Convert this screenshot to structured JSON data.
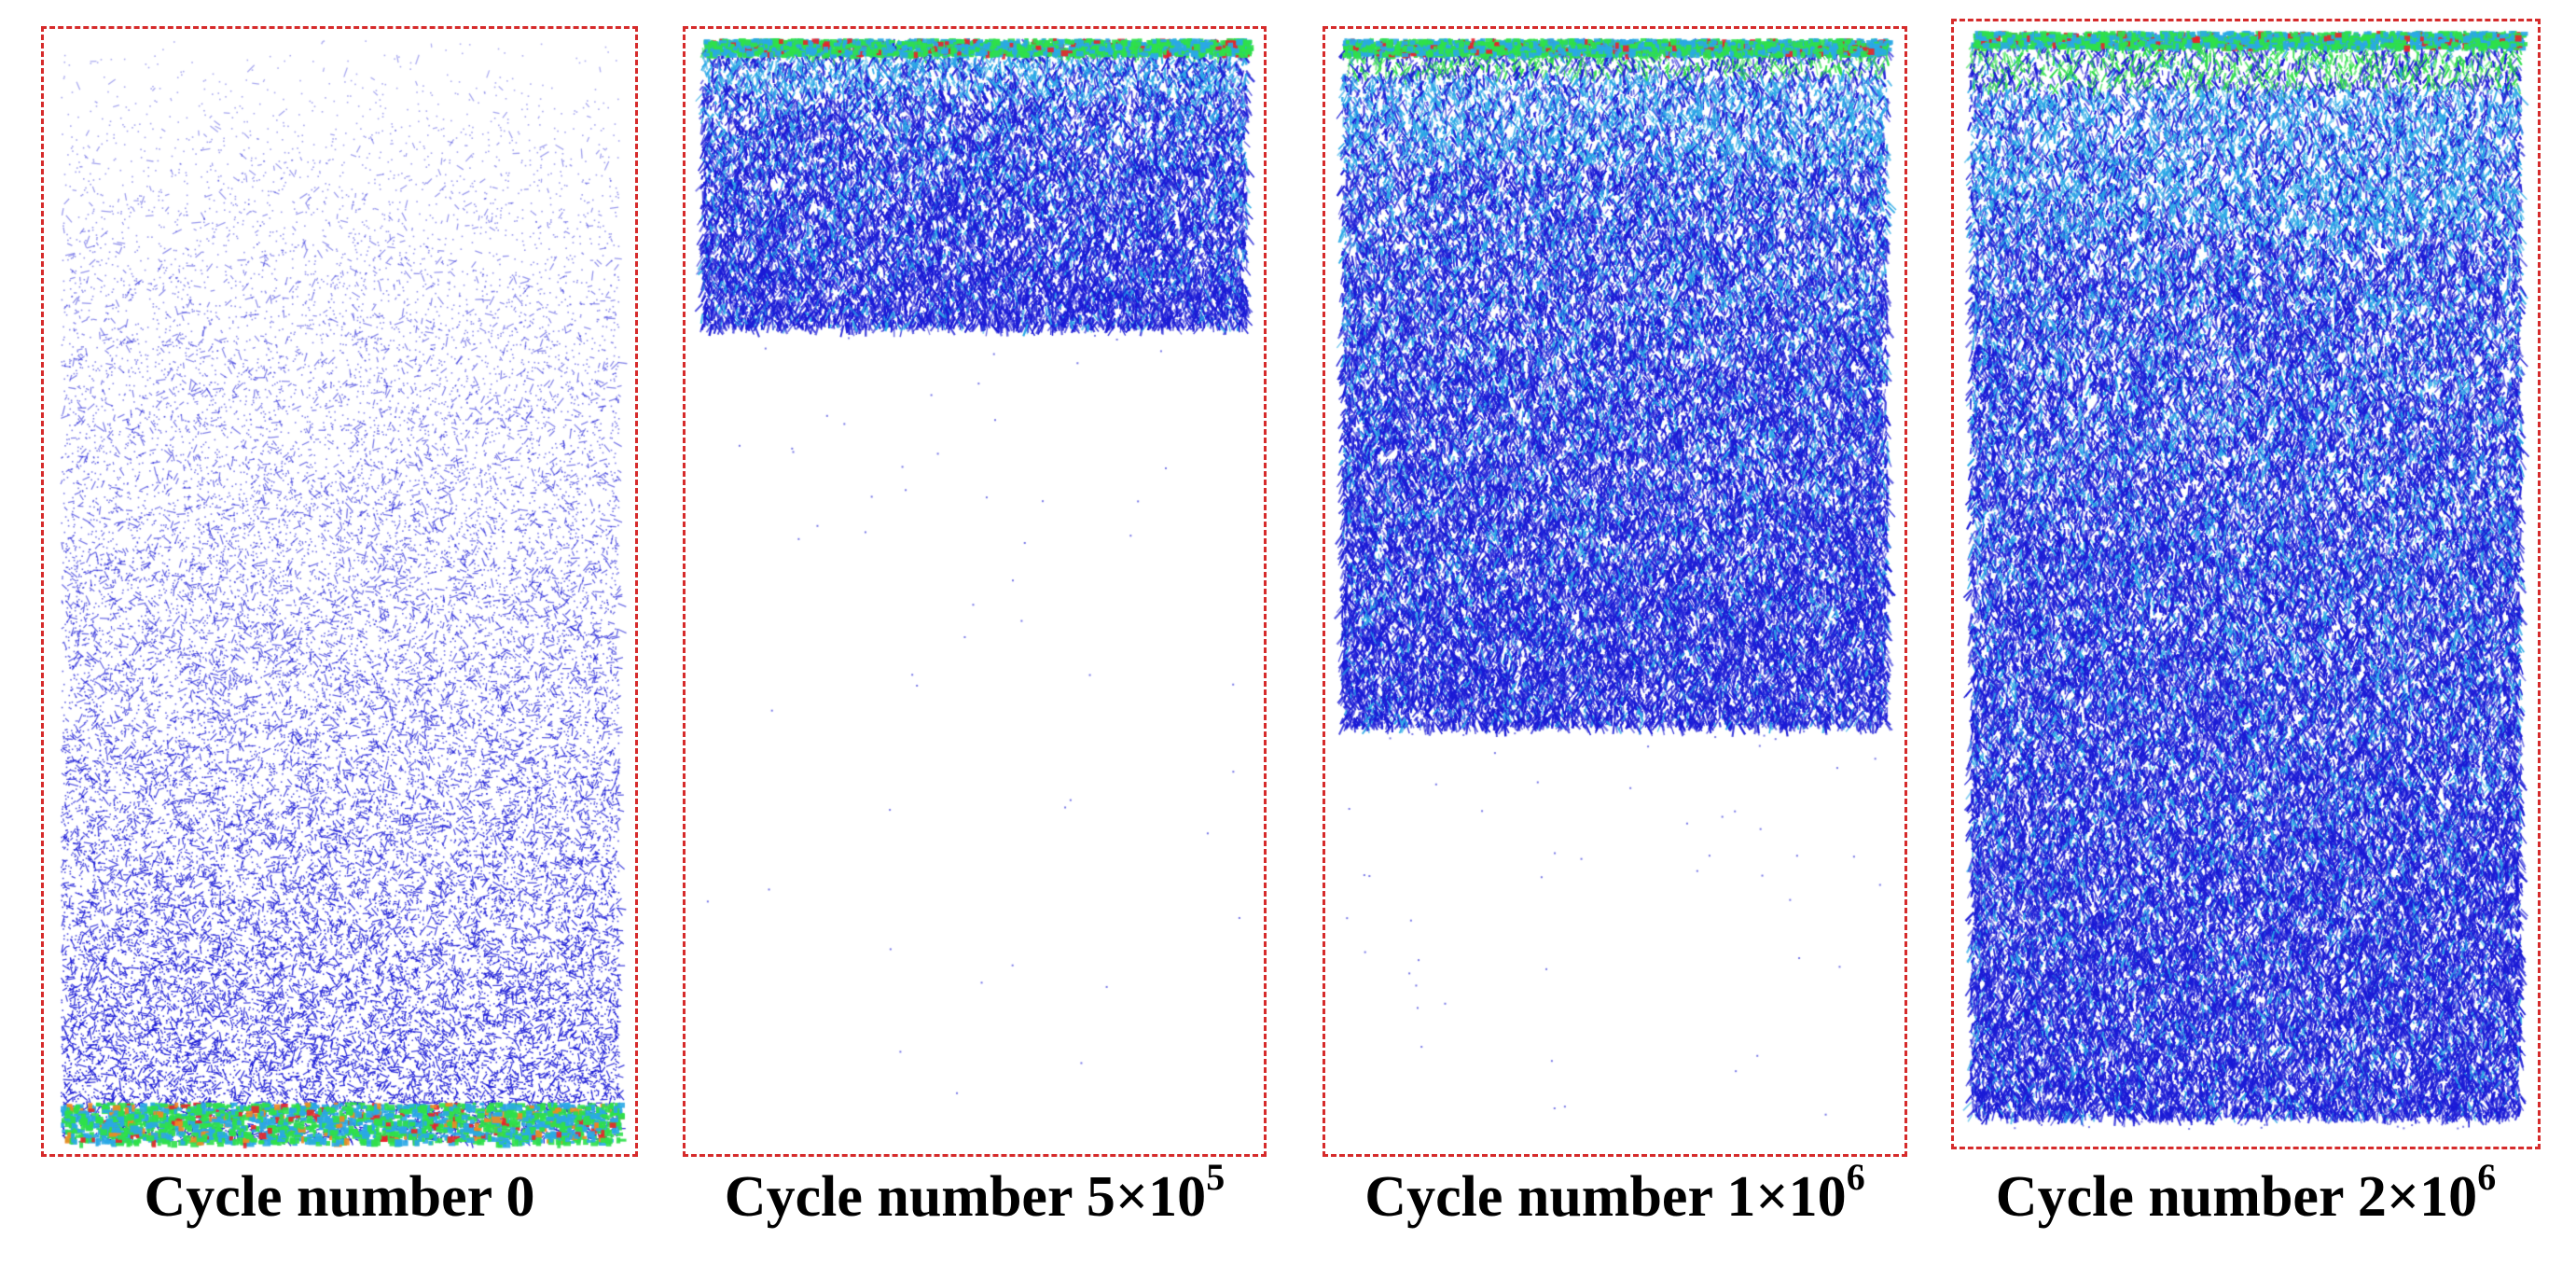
{
  "panels": [
    {
      "id": "p0",
      "caption_prefix": "Cycle number ",
      "caption_value": "0",
      "caption_exp": "",
      "fill_from": "bottom",
      "fill_fraction": 0.035,
      "density": "sparse"
    },
    {
      "id": "p1",
      "caption_prefix": "Cycle number ",
      "caption_value": "5×10",
      "caption_exp": "5",
      "fill_from": "top",
      "fill_fraction": 0.26,
      "density": "dense"
    },
    {
      "id": "p2",
      "caption_prefix": "Cycle number ",
      "caption_value": "1×10",
      "caption_exp": "6",
      "fill_from": "top",
      "fill_fraction": 0.62,
      "density": "dense"
    },
    {
      "id": "p3",
      "caption_prefix": "Cycle number ",
      "caption_value": "2×10",
      "caption_exp": "6",
      "fill_from": "top",
      "fill_fraction": 0.98,
      "density": "dense"
    }
  ],
  "colors": {
    "frame": "#d62b2b",
    "particle_low": "#1a1ad6",
    "particle_mid": "#2aa8e6",
    "particle_high": "#2fe04a",
    "particle_peak": "#e8252a"
  }
}
